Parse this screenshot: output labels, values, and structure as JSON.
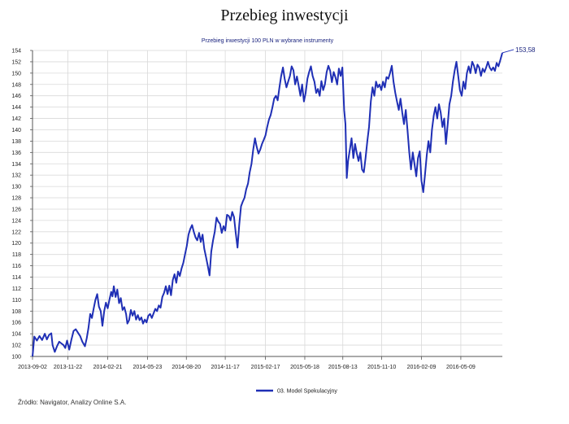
{
  "page": {
    "title": "Przebieg inwestycji",
    "source": "Źródło: Navigator, Analizy Online S.A."
  },
  "colors": {
    "line": "#1f2fb5",
    "grid": "#d9d9d9",
    "axis": "#555555",
    "text": "#222222"
  },
  "chart_data": {
    "type": "line",
    "title": "Przebieg inwestycji 100 PLN w wybrane instrumenty",
    "xlabel": "",
    "ylabel": "",
    "ylim": [
      100,
      154
    ],
    "yticks": [
      100,
      102,
      104,
      106,
      108,
      110,
      112,
      114,
      116,
      118,
      120,
      122,
      124,
      126,
      128,
      130,
      132,
      134,
      136,
      138,
      140,
      142,
      144,
      146,
      148,
      150,
      152,
      154
    ],
    "xlim": [
      "2013-09-02",
      "2016-08-12"
    ],
    "xtick_labels": [
      "2013-09-02",
      "2013-11-22",
      "2014-02-21",
      "2014-05-23",
      "2014-08-20",
      "2014-11-17",
      "2015-02-17",
      "2015-05-18",
      "2015-08-13",
      "2015-11-10",
      "2016-02-09",
      "2016-05-09"
    ],
    "grid": true,
    "legend": {
      "position": "bottom-center",
      "entries": [
        "03. Model Spekulacyjny"
      ]
    },
    "end_label": "153,58",
    "series": [
      {
        "name": "03. Model Spekulacyjny",
        "points": [
          [
            "2013-09-02",
            100.0
          ],
          [
            "2013-09-06",
            103.5
          ],
          [
            "2013-09-12",
            102.8
          ],
          [
            "2013-09-18",
            103.6
          ],
          [
            "2013-09-24",
            102.9
          ],
          [
            "2013-09-30",
            104.0
          ],
          [
            "2013-10-05",
            103.0
          ],
          [
            "2013-10-10",
            103.8
          ],
          [
            "2013-10-15",
            104.1
          ],
          [
            "2013-10-18",
            102.0
          ],
          [
            "2013-10-23",
            100.8
          ],
          [
            "2013-10-28",
            101.8
          ],
          [
            "2013-11-02",
            102.6
          ],
          [
            "2013-11-07",
            102.3
          ],
          [
            "2013-11-12",
            102.0
          ],
          [
            "2013-11-16",
            101.5
          ],
          [
            "2013-11-20",
            102.8
          ],
          [
            "2013-11-25",
            101.2
          ],
          [
            "2013-11-30",
            103.0
          ],
          [
            "2013-12-05",
            104.5
          ],
          [
            "2013-12-10",
            104.8
          ],
          [
            "2013-12-15",
            104.2
          ],
          [
            "2013-12-20",
            103.6
          ],
          [
            "2013-12-25",
            102.6
          ],
          [
            "2013-12-31",
            101.8
          ],
          [
            "2014-01-04",
            103.2
          ],
          [
            "2014-01-08",
            105.0
          ],
          [
            "2014-01-12",
            107.5
          ],
          [
            "2014-01-16",
            106.8
          ],
          [
            "2014-01-20",
            108.5
          ],
          [
            "2014-01-24",
            110.0
          ],
          [
            "2014-01-28",
            111.0
          ],
          [
            "2014-02-01",
            108.8
          ],
          [
            "2014-02-05",
            108.0
          ],
          [
            "2014-02-09",
            105.4
          ],
          [
            "2014-02-13",
            108.0
          ],
          [
            "2014-02-17",
            109.5
          ],
          [
            "2014-02-21",
            108.5
          ],
          [
            "2014-02-25",
            110.0
          ],
          [
            "2014-03-01",
            111.4
          ],
          [
            "2014-03-04",
            110.6
          ],
          [
            "2014-03-07",
            112.4
          ],
          [
            "2014-03-11",
            110.5
          ],
          [
            "2014-03-15",
            111.8
          ],
          [
            "2014-03-19",
            109.4
          ],
          [
            "2014-03-23",
            110.3
          ],
          [
            "2014-03-27",
            108.2
          ],
          [
            "2014-03-31",
            108.7
          ],
          [
            "2014-04-04",
            107.5
          ],
          [
            "2014-04-07",
            105.8
          ],
          [
            "2014-04-11",
            106.4
          ],
          [
            "2014-04-15",
            108.2
          ],
          [
            "2014-04-19",
            107.2
          ],
          [
            "2014-04-23",
            108.0
          ],
          [
            "2014-04-27",
            106.5
          ],
          [
            "2014-05-01",
            107.3
          ],
          [
            "2014-05-05",
            106.4
          ],
          [
            "2014-05-09",
            106.9
          ],
          [
            "2014-05-13",
            105.8
          ],
          [
            "2014-05-17",
            106.5
          ],
          [
            "2014-05-21",
            106.0
          ],
          [
            "2014-05-25",
            107.2
          ],
          [
            "2014-05-29",
            107.5
          ],
          [
            "2014-06-02",
            106.8
          ],
          [
            "2014-06-06",
            107.6
          ],
          [
            "2014-06-10",
            108.4
          ],
          [
            "2014-06-14",
            108.0
          ],
          [
            "2014-06-18",
            109.0
          ],
          [
            "2014-06-22",
            108.6
          ],
          [
            "2014-06-26",
            110.5
          ],
          [
            "2014-06-30",
            111.2
          ],
          [
            "2014-07-04",
            112.4
          ],
          [
            "2014-07-08",
            111.0
          ],
          [
            "2014-07-12",
            112.5
          ],
          [
            "2014-07-16",
            110.8
          ],
          [
            "2014-07-20",
            113.5
          ],
          [
            "2014-07-24",
            114.5
          ],
          [
            "2014-07-28",
            113.0
          ],
          [
            "2014-08-01",
            115.0
          ],
          [
            "2014-08-05",
            114.2
          ],
          [
            "2014-08-09",
            115.5
          ],
          [
            "2014-08-13",
            116.5
          ],
          [
            "2014-08-17",
            118.0
          ],
          [
            "2014-08-21",
            119.5
          ],
          [
            "2014-08-25",
            121.5
          ],
          [
            "2014-08-29",
            122.5
          ],
          [
            "2014-09-02",
            123.2
          ],
          [
            "2014-09-06",
            122.0
          ],
          [
            "2014-09-10",
            121.0
          ],
          [
            "2014-09-14",
            120.5
          ],
          [
            "2014-09-18",
            121.8
          ],
          [
            "2014-09-22",
            120.2
          ],
          [
            "2014-09-26",
            121.5
          ],
          [
            "2014-09-30",
            119.0
          ],
          [
            "2014-10-04",
            117.5
          ],
          [
            "2014-10-08",
            116.0
          ],
          [
            "2014-10-12",
            114.3
          ],
          [
            "2014-10-16",
            118.5
          ],
          [
            "2014-10-20",
            120.5
          ],
          [
            "2014-10-24",
            122.0
          ],
          [
            "2014-10-28",
            124.5
          ],
          [
            "2014-11-01",
            123.8
          ],
          [
            "2014-11-05",
            123.4
          ],
          [
            "2014-11-09",
            121.8
          ],
          [
            "2014-11-13",
            123.0
          ],
          [
            "2014-11-17",
            122.2
          ],
          [
            "2014-11-21",
            125.0
          ],
          [
            "2014-11-25",
            124.8
          ],
          [
            "2014-11-29",
            124.0
          ],
          [
            "2014-12-03",
            125.5
          ],
          [
            "2014-12-07",
            124.6
          ],
          [
            "2014-12-11",
            121.8
          ],
          [
            "2014-12-15",
            119.2
          ],
          [
            "2014-12-19",
            123.2
          ],
          [
            "2014-12-23",
            126.5
          ],
          [
            "2014-12-27",
            127.3
          ],
          [
            "2014-12-31",
            128.0
          ],
          [
            "2015-01-04",
            129.5
          ],
          [
            "2015-01-08",
            130.5
          ],
          [
            "2015-01-12",
            132.5
          ],
          [
            "2015-01-16",
            134.0
          ],
          [
            "2015-01-20",
            136.5
          ],
          [
            "2015-01-24",
            138.5
          ],
          [
            "2015-01-28",
            137.0
          ],
          [
            "2015-02-01",
            135.8
          ],
          [
            "2015-02-05",
            136.5
          ],
          [
            "2015-02-09",
            137.5
          ],
          [
            "2015-02-13",
            138.2
          ],
          [
            "2015-02-17",
            139.0
          ],
          [
            "2015-02-21",
            140.5
          ],
          [
            "2015-02-25",
            141.8
          ],
          [
            "2015-03-01",
            142.6
          ],
          [
            "2015-03-05",
            144.0
          ],
          [
            "2015-03-09",
            145.5
          ],
          [
            "2015-03-13",
            146.0
          ],
          [
            "2015-03-17",
            145.2
          ],
          [
            "2015-03-21",
            147.5
          ],
          [
            "2015-03-25",
            149.5
          ],
          [
            "2015-03-29",
            151.0
          ],
          [
            "2015-04-02",
            149.0
          ],
          [
            "2015-04-06",
            147.5
          ],
          [
            "2015-04-10",
            148.5
          ],
          [
            "2015-04-14",
            149.5
          ],
          [
            "2015-04-18",
            151.2
          ],
          [
            "2015-04-22",
            150.5
          ],
          [
            "2015-04-26",
            148.0
          ],
          [
            "2015-04-30",
            149.4
          ],
          [
            "2015-05-04",
            147.8
          ],
          [
            "2015-05-08",
            146.0
          ],
          [
            "2015-05-12",
            148.0
          ],
          [
            "2015-05-16",
            145.0
          ],
          [
            "2015-05-20",
            146.5
          ],
          [
            "2015-05-24",
            149.0
          ],
          [
            "2015-05-28",
            150.2
          ],
          [
            "2015-06-01",
            151.2
          ],
          [
            "2015-06-05",
            149.5
          ],
          [
            "2015-06-09",
            148.5
          ],
          [
            "2015-06-13",
            146.5
          ],
          [
            "2015-06-17",
            147.2
          ],
          [
            "2015-06-21",
            146.0
          ],
          [
            "2015-06-25",
            148.6
          ],
          [
            "2015-06-29",
            147.0
          ],
          [
            "2015-07-03",
            148.0
          ],
          [
            "2015-07-07",
            150.2
          ],
          [
            "2015-07-11",
            151.3
          ],
          [
            "2015-07-15",
            150.4
          ],
          [
            "2015-07-19",
            148.4
          ],
          [
            "2015-07-23",
            150.2
          ],
          [
            "2015-07-27",
            149.3
          ],
          [
            "2015-07-31",
            148.0
          ],
          [
            "2015-08-04",
            150.8
          ],
          [
            "2015-08-08",
            149.5
          ],
          [
            "2015-08-12",
            151.0
          ],
          [
            "2015-08-16",
            143.5
          ],
          [
            "2015-08-19",
            141.0
          ],
          [
            "2015-08-22",
            131.5
          ],
          [
            "2015-08-25",
            134.5
          ],
          [
            "2015-08-29",
            136.5
          ],
          [
            "2015-09-02",
            138.5
          ],
          [
            "2015-09-06",
            135.0
          ],
          [
            "2015-09-10",
            137.5
          ],
          [
            "2015-09-14",
            135.8
          ],
          [
            "2015-09-18",
            134.5
          ],
          [
            "2015-09-22",
            136.0
          ],
          [
            "2015-09-26",
            133.0
          ],
          [
            "2015-09-30",
            132.5
          ],
          [
            "2015-10-04",
            135.0
          ],
          [
            "2015-10-08",
            138.0
          ],
          [
            "2015-10-12",
            140.5
          ],
          [
            "2015-10-16",
            145.0
          ],
          [
            "2015-10-20",
            147.5
          ],
          [
            "2015-10-24",
            146.0
          ],
          [
            "2015-10-28",
            148.5
          ],
          [
            "2015-11-01",
            147.5
          ],
          [
            "2015-11-05",
            148.0
          ],
          [
            "2015-11-09",
            147.0
          ],
          [
            "2015-11-13",
            148.5
          ],
          [
            "2015-11-17",
            147.5
          ],
          [
            "2015-11-21",
            149.3
          ],
          [
            "2015-11-25",
            149.0
          ],
          [
            "2015-11-29",
            150.0
          ],
          [
            "2015-12-03",
            151.3
          ],
          [
            "2015-12-07",
            148.5
          ],
          [
            "2015-12-11",
            146.5
          ],
          [
            "2015-12-15",
            145.0
          ],
          [
            "2015-12-19",
            143.5
          ],
          [
            "2015-12-23",
            145.5
          ],
          [
            "2015-12-27",
            143.0
          ],
          [
            "2015-12-31",
            141.0
          ],
          [
            "2016-01-04",
            143.5
          ],
          [
            "2016-01-08",
            140.0
          ],
          [
            "2016-01-12",
            136.0
          ],
          [
            "2016-01-16",
            133.0
          ],
          [
            "2016-01-20",
            136.0
          ],
          [
            "2016-01-24",
            134.0
          ],
          [
            "2016-01-28",
            131.8
          ],
          [
            "2016-02-01",
            135.0
          ],
          [
            "2016-02-05",
            136.2
          ],
          [
            "2016-02-09",
            131.0
          ],
          [
            "2016-02-13",
            129.0
          ],
          [
            "2016-02-17",
            132.0
          ],
          [
            "2016-02-21",
            135.5
          ],
          [
            "2016-02-25",
            138.0
          ],
          [
            "2016-02-29",
            136.0
          ],
          [
            "2016-03-04",
            140.0
          ],
          [
            "2016-03-08",
            142.5
          ],
          [
            "2016-03-12",
            144.0
          ],
          [
            "2016-03-16",
            142.0
          ],
          [
            "2016-03-20",
            144.5
          ],
          [
            "2016-03-24",
            143.0
          ],
          [
            "2016-03-28",
            140.5
          ],
          [
            "2016-04-01",
            142.0
          ],
          [
            "2016-04-05",
            137.5
          ],
          [
            "2016-04-09",
            141.0
          ],
          [
            "2016-04-13",
            144.5
          ],
          [
            "2016-04-17",
            146.0
          ],
          [
            "2016-04-21",
            148.5
          ],
          [
            "2016-04-25",
            150.5
          ],
          [
            "2016-04-29",
            152.0
          ],
          [
            "2016-05-03",
            149.5
          ],
          [
            "2016-05-07",
            147.0
          ],
          [
            "2016-05-11",
            146.0
          ],
          [
            "2016-05-15",
            148.5
          ],
          [
            "2016-05-19",
            147.2
          ],
          [
            "2016-05-23",
            150.0
          ],
          [
            "2016-05-27",
            151.2
          ],
          [
            "2016-05-31",
            150.0
          ],
          [
            "2016-06-04",
            152.0
          ],
          [
            "2016-06-08",
            151.3
          ],
          [
            "2016-06-12",
            150.0
          ],
          [
            "2016-06-16",
            151.5
          ],
          [
            "2016-06-20",
            151.0
          ],
          [
            "2016-06-24",
            149.5
          ],
          [
            "2016-06-28",
            150.8
          ],
          [
            "2016-07-02",
            150.2
          ],
          [
            "2016-07-06",
            151.0
          ],
          [
            "2016-07-10",
            152.0
          ],
          [
            "2016-07-14",
            151.0
          ],
          [
            "2016-07-18",
            150.5
          ],
          [
            "2016-07-22",
            151.0
          ],
          [
            "2016-07-26",
            150.4
          ],
          [
            "2016-07-30",
            151.8
          ],
          [
            "2016-08-03",
            151.2
          ],
          [
            "2016-08-07",
            152.2
          ],
          [
            "2016-08-12",
            153.58
          ]
        ]
      }
    ]
  }
}
